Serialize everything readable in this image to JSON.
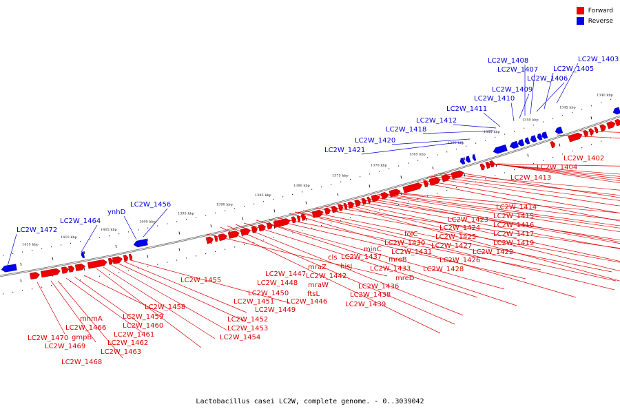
{
  "legend": [
    {
      "label": "Forward",
      "color": "#ee0000"
    },
    {
      "label": "Reverse",
      "color": "#0000ee"
    }
  ],
  "caption": "Lactobacillus casei LC2W, complete genome. - 0..3039042",
  "colors": {
    "forward": "#ee0000",
    "reverse": "#0000ee",
    "forward_label": "#dd0000",
    "reverse_label": "#0000dd",
    "backbone": "#777777"
  },
  "scale_ticks": [
    "1340 kbp",
    "1345 kbp",
    "1350 kbp",
    "1355 kbp",
    "1360 kbp",
    "1365 kbp",
    "1370 kbp",
    "1375 kbp",
    "1380 kbp",
    "1385 kbp",
    "1390 kbp",
    "1395 kbp",
    "1400 kbp",
    "1405 kbp",
    "1410 kbp",
    "1415 kbp"
  ],
  "reverse_genes": [
    "LC2W_1403",
    "LC2W_1405",
    "LC2W_1406",
    "LC2W_1407",
    "LC2W_1408",
    "LC2W_1409",
    "LC2W_1410",
    "LC2W_1411",
    "LC2W_1412",
    "LC2W_1418",
    "LC2W_1420",
    "LC2W_1421",
    "LC2W_1456",
    "ynhD",
    "LC2W_1464",
    "LC2W_1472"
  ],
  "forward_genes": [
    "LC2W_1402",
    "LC2W_1404",
    "LC2W_1413",
    "LC2W_1414",
    "LC2W_1415",
    "LC2W_1416",
    "LC2W_1417",
    "LC2W_1419",
    "LC2W_1422",
    "LC2W_1423",
    "LC2W_1424",
    "LC2W_1425",
    "LC2W_1427",
    "LC2W_1426",
    "LC2W_1428",
    "folC",
    "LC2W_1430",
    "LC2W_1431",
    "minC",
    "mreB",
    "LC2W_1433",
    "mreD",
    "LC2W_1437",
    "hisJ",
    "LC2W_1436",
    "LC2W_1438",
    "LC2W_1439",
    "cls",
    "mraZ",
    "LC2W_1442",
    "mraW",
    "ftsL",
    "LC2W_1446",
    "LC2W_1447",
    "LC2W_1448",
    "LC2W_1450",
    "LC2W_1451",
    "LC2W_1449",
    "LC2W_1452",
    "LC2W_1453",
    "LC2W_1454",
    "LC2W_1455",
    "LC2W_1458",
    "LC2W_1459",
    "LC2W_1460",
    "LC2W_1461",
    "LC2W_1462",
    "LC2W_1463",
    "mnmA",
    "LC2W_1466",
    "gmpB",
    "LC2W_1470",
    "LC2W_1469",
    "LC2W_1468"
  ]
}
